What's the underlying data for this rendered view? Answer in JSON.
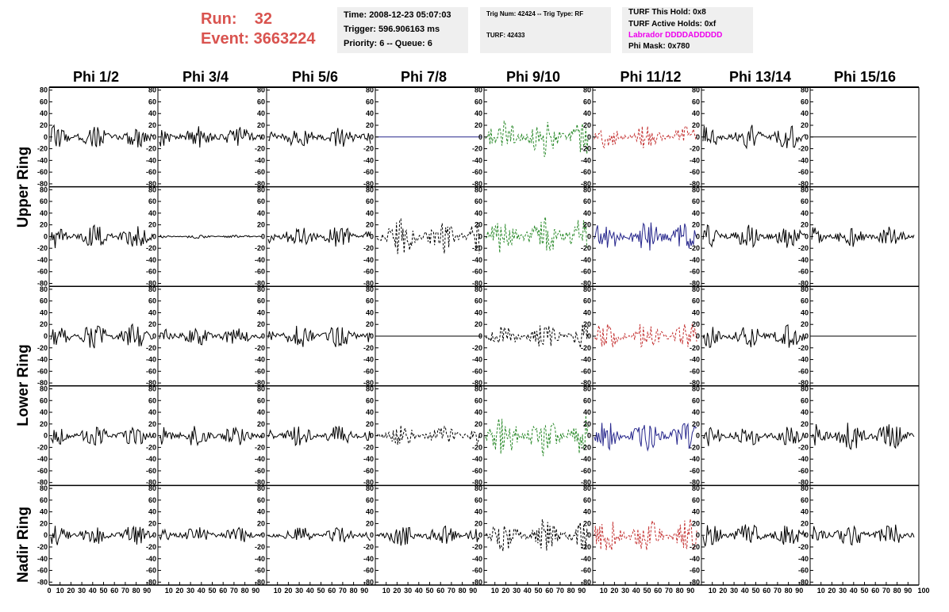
{
  "header": {
    "run_label": "Run:    32",
    "event_label": "Event: 3663224",
    "time_box": {
      "time": "Time: 2008-12-23 05:07:03",
      "trigger": "Trigger: 596.906163 ms",
      "priority": "Priority: 6 -- Queue: 6"
    },
    "trig_box": {
      "trig": "Trig Num: 42424 -- Trig Type: RF",
      "turf": "TURF: 42433"
    },
    "turf_box": {
      "this_hold": "TURF This Hold: 0x8",
      "active_holds": "TURF Active Holds: 0xf",
      "labrador": "Labrador DDDDADDDDD",
      "phi_mask": "Phi Mask: 0x780"
    }
  },
  "columns": [
    "Phi 1/2",
    "Phi 3/4",
    "Phi 5/6",
    "Phi 7/8",
    "Phi 9/10",
    "Phi 11/12",
    "Phi 13/14",
    "Phi 15/16"
  ],
  "ring_labels": [
    "Upper Ring",
    "Lower Ring",
    "Nadir Ring"
  ],
  "axes": {
    "y_ticks": [
      "80",
      "60",
      "40",
      "20",
      "0",
      "-20",
      "-40",
      "-60",
      "-80"
    ],
    "x_ticks_first": [
      "0",
      "10",
      "20",
      "30",
      "40",
      "50",
      "60",
      "70",
      "80",
      "90"
    ],
    "x_ticks_middle": [
      "10",
      "20",
      "30",
      "40",
      "50",
      "60",
      "70",
      "80",
      "90"
    ],
    "x_last_label": "100",
    "x_range": [
      0,
      100
    ],
    "y_range": [
      -85,
      85
    ]
  },
  "colors": {
    "black": "#000000",
    "green": "#2a8a2a",
    "red": "#c43030",
    "blue": "#26268c",
    "event_red": "#d9534f",
    "magenta": "#ee00ee",
    "info_bg": "#efefef"
  },
  "chart_data": {
    "type": "line",
    "panels": [
      {
        "row": 1,
        "col": 1,
        "color": "black",
        "style": "solid",
        "amplitude": 20
      },
      {
        "row": 1,
        "col": 2,
        "color": "black",
        "style": "solid",
        "amplitude": 20
      },
      {
        "row": 1,
        "col": 3,
        "color": "black",
        "style": "solid",
        "amplitude": 20
      },
      {
        "row": 1,
        "col": 4,
        "color": "blue",
        "style": "flat",
        "amplitude": 0
      },
      {
        "row": 1,
        "col": 5,
        "color": "green",
        "style": "dashed",
        "amplitude": 35
      },
      {
        "row": 1,
        "col": 6,
        "color": "red",
        "style": "dashed",
        "amplitude": 20
      },
      {
        "row": 1,
        "col": 7,
        "color": "black",
        "style": "solid",
        "amplitude": 22
      },
      {
        "row": 1,
        "col": 8,
        "color": "black",
        "style": "flat",
        "amplitude": 0
      },
      {
        "row": 2,
        "col": 1,
        "color": "black",
        "style": "solid",
        "amplitude": 20
      },
      {
        "row": 2,
        "col": 2,
        "color": "black",
        "style": "solid",
        "amplitude": 3
      },
      {
        "row": 2,
        "col": 3,
        "color": "black",
        "style": "solid",
        "amplitude": 20
      },
      {
        "row": 2,
        "col": 4,
        "color": "black",
        "style": "dashed",
        "amplitude": 32
      },
      {
        "row": 2,
        "col": 5,
        "color": "green",
        "style": "dashed",
        "amplitude": 35
      },
      {
        "row": 2,
        "col": 6,
        "color": "blue",
        "style": "solid",
        "amplitude": 28
      },
      {
        "row": 2,
        "col": 7,
        "color": "black",
        "style": "solid",
        "amplitude": 20
      },
      {
        "row": 2,
        "col": 8,
        "color": "black",
        "style": "solid",
        "amplitude": 18
      },
      {
        "row": 3,
        "col": 1,
        "color": "black",
        "style": "solid",
        "amplitude": 22
      },
      {
        "row": 3,
        "col": 2,
        "color": "black",
        "style": "solid",
        "amplitude": 18
      },
      {
        "row": 3,
        "col": 3,
        "color": "black",
        "style": "solid",
        "amplitude": 20
      },
      {
        "row": 3,
        "col": 4,
        "color": "black",
        "style": "flat",
        "amplitude": 0
      },
      {
        "row": 3,
        "col": 5,
        "color": "black",
        "style": "dashed",
        "amplitude": 22
      },
      {
        "row": 3,
        "col": 6,
        "color": "red",
        "style": "dashed",
        "amplitude": 25
      },
      {
        "row": 3,
        "col": 7,
        "color": "black",
        "style": "solid",
        "amplitude": 20
      },
      {
        "row": 3,
        "col": 8,
        "color": "black",
        "style": "flat",
        "amplitude": 0
      },
      {
        "row": 4,
        "col": 1,
        "color": "black",
        "style": "solid",
        "amplitude": 18
      },
      {
        "row": 4,
        "col": 2,
        "color": "black",
        "style": "solid",
        "amplitude": 20
      },
      {
        "row": 4,
        "col": 3,
        "color": "black",
        "style": "solid",
        "amplitude": 18
      },
      {
        "row": 4,
        "col": 4,
        "color": "black",
        "style": "dashed",
        "amplitude": 18
      },
      {
        "row": 4,
        "col": 5,
        "color": "green",
        "style": "dashed",
        "amplitude": 35
      },
      {
        "row": 4,
        "col": 6,
        "color": "blue",
        "style": "solid",
        "amplitude": 25
      },
      {
        "row": 4,
        "col": 7,
        "color": "black",
        "style": "solid",
        "amplitude": 18
      },
      {
        "row": 4,
        "col": 8,
        "color": "black",
        "style": "solid",
        "amplitude": 25
      },
      {
        "row": 5,
        "col": 1,
        "color": "black",
        "style": "solid",
        "amplitude": 18
      },
      {
        "row": 5,
        "col": 2,
        "color": "black",
        "style": "solid",
        "amplitude": 15
      },
      {
        "row": 5,
        "col": 3,
        "color": "black",
        "style": "solid",
        "amplitude": 15
      },
      {
        "row": 5,
        "col": 4,
        "color": "black",
        "style": "solid",
        "amplitude": 18
      },
      {
        "row": 5,
        "col": 5,
        "color": "black",
        "style": "dashed",
        "amplitude": 28
      },
      {
        "row": 5,
        "col": 6,
        "color": "red",
        "style": "dashed",
        "amplitude": 30
      },
      {
        "row": 5,
        "col": 7,
        "color": "black",
        "style": "solid",
        "amplitude": 20
      },
      {
        "row": 5,
        "col": 8,
        "color": "black",
        "style": "solid",
        "amplitude": 20
      }
    ]
  }
}
